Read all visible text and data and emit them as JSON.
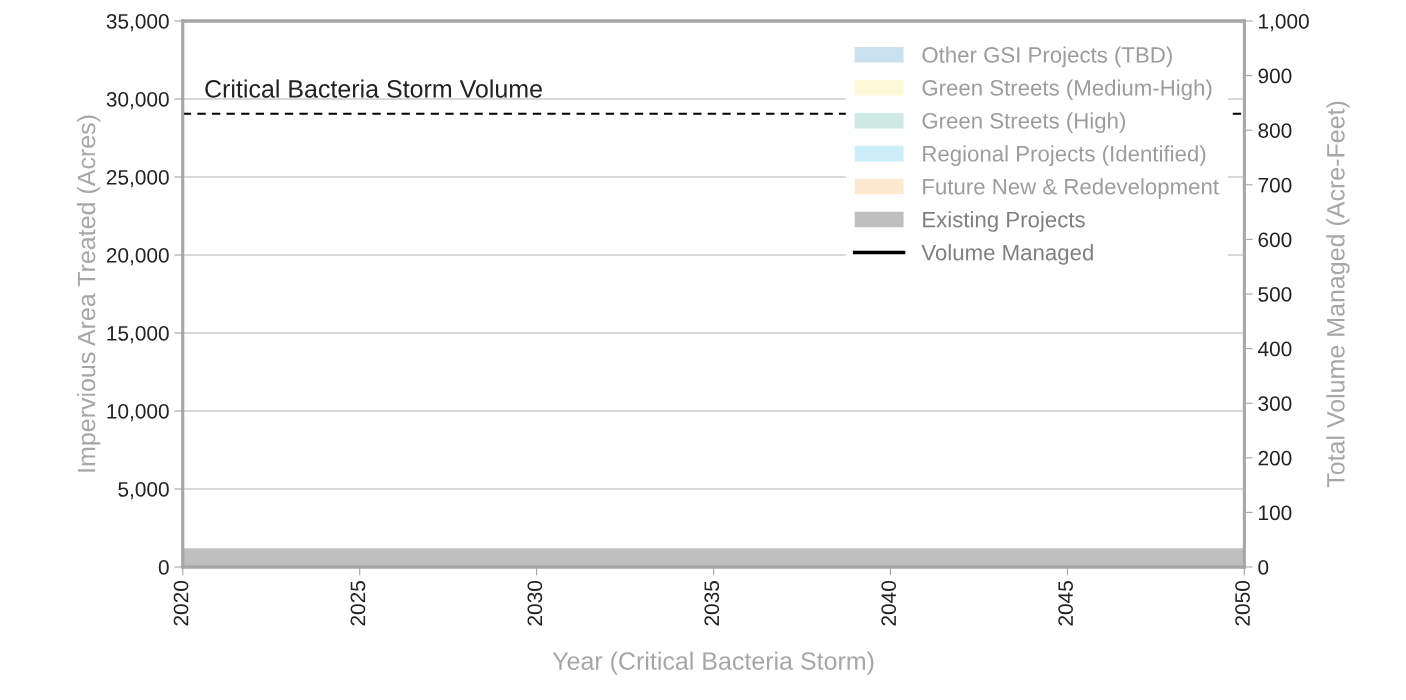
{
  "chart_data": {
    "type": "area",
    "xlabel": "Year (Critical Bacteria Storm)",
    "ylabel": "Impervious Area Treated (Acres)",
    "y2label": "Total Volume Managed (Acre-Feet)",
    "x": [
      2020,
      2050
    ],
    "series": [
      {
        "name": "Existing Projects",
        "color": "#bfbfbf",
        "values": [
          1200,
          1200
        ]
      },
      {
        "name": "Future New & Redevelopment",
        "color": "#fde9cf",
        "values": [
          null,
          null
        ]
      },
      {
        "name": "Regional Projects (Identified)",
        "color": "#cdeef9",
        "values": [
          null,
          null
        ]
      },
      {
        "name": "Green Streets (High)",
        "color": "#cde9e1",
        "values": [
          null,
          null
        ]
      },
      {
        "name": "Green Streets (Medium-High)",
        "color": "#fdf8d6",
        "values": [
          null,
          null
        ]
      },
      {
        "name": "Other GSI Projects (TBD)",
        "color": "#c9e1ee",
        "values": [
          null,
          null
        ]
      },
      {
        "name": "Volume Managed",
        "type": "line",
        "color": "#000000",
        "values": [
          null,
          null
        ]
      }
    ],
    "xlim": [
      2020,
      2050
    ],
    "xticks": [
      2020,
      2025,
      2030,
      2035,
      2040,
      2045,
      2050
    ],
    "ylim": [
      0,
      35000
    ],
    "yticks": [
      {
        "value": 0,
        "label": "0"
      },
      {
        "value": 5000,
        "label": "5,000"
      },
      {
        "value": 10000,
        "label": "10,000"
      },
      {
        "value": 15000,
        "label": "15,000"
      },
      {
        "value": 20000,
        "label": "20,000"
      },
      {
        "value": 25000,
        "label": "25,000"
      },
      {
        "value": 30000,
        "label": "30,000"
      },
      {
        "value": 35000,
        "label": "35,000"
      }
    ],
    "y2lim": [
      0,
      1000
    ],
    "y2ticks": [
      0,
      100,
      200,
      300,
      400,
      500,
      600,
      700,
      800,
      900,
      {
        "value": 1000,
        "label": "1,000"
      }
    ],
    "ref_lines": [
      {
        "axis": "y2",
        "value": 830,
        "label": "Critical Bacteria Storm Volume",
        "color": "#000000",
        "line_style": "dashed"
      }
    ],
    "grid": "y",
    "legend": "top right"
  }
}
